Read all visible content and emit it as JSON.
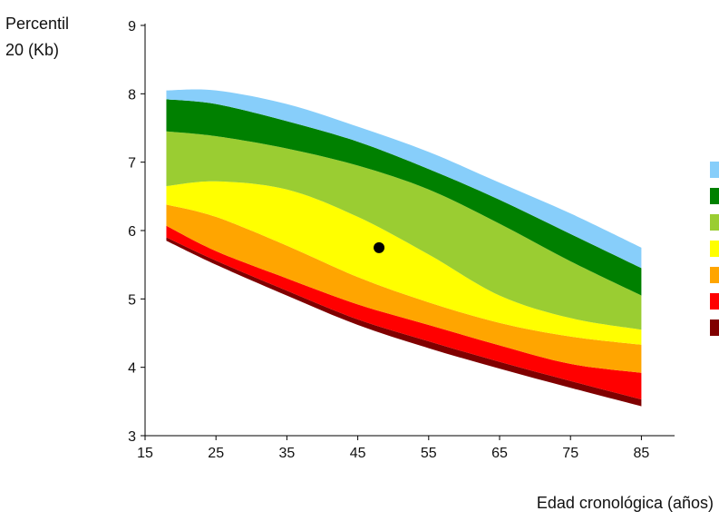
{
  "chart_data": {
    "type": "area",
    "title": "",
    "ylabel_lines": [
      "Percentil",
      "20 (Kb)"
    ],
    "xlabel": "Edad cronológica (años)",
    "xlim": [
      15,
      92
    ],
    "ylim": [
      3,
      9
    ],
    "xticks": [
      15,
      25,
      35,
      45,
      55,
      65,
      75,
      85
    ],
    "yticks": [
      3,
      4,
      5,
      6,
      7,
      8,
      9
    ],
    "grid": false,
    "legend_position": "right",
    "x": [
      18,
      25,
      35,
      45,
      55,
      65,
      75,
      85
    ],
    "band_boundaries": [
      [
        5.85,
        5.5,
        5.05,
        4.62,
        4.28,
        3.98,
        3.7,
        3.43
      ],
      [
        5.9,
        5.56,
        5.12,
        4.7,
        4.38,
        4.08,
        3.8,
        3.53
      ],
      [
        6.07,
        5.7,
        5.3,
        4.92,
        4.62,
        4.32,
        4.05,
        3.92
      ],
      [
        6.38,
        6.2,
        5.78,
        5.32,
        4.95,
        4.65,
        4.45,
        4.33
      ],
      [
        6.65,
        6.72,
        6.6,
        6.2,
        5.65,
        5.05,
        4.72,
        4.55
      ],
      [
        7.45,
        7.38,
        7.2,
        6.95,
        6.6,
        6.1,
        5.55,
        5.05
      ],
      [
        7.92,
        7.85,
        7.6,
        7.3,
        6.9,
        6.45,
        5.95,
        5.45
      ],
      [
        8.05,
        8.05,
        7.85,
        7.52,
        7.15,
        6.7,
        6.25,
        5.75
      ]
    ],
    "bands": [
      {
        "color": "#800000"
      },
      {
        "color": "#ff0000"
      },
      {
        "color": "#ffa500"
      },
      {
        "color": "#ffff00"
      },
      {
        "color": "#9acd32"
      },
      {
        "color": "#008000"
      },
      {
        "color": "#87cefa"
      }
    ],
    "points": [
      {
        "x": 48,
        "y": 5.75,
        "color": "#000000"
      }
    ]
  }
}
